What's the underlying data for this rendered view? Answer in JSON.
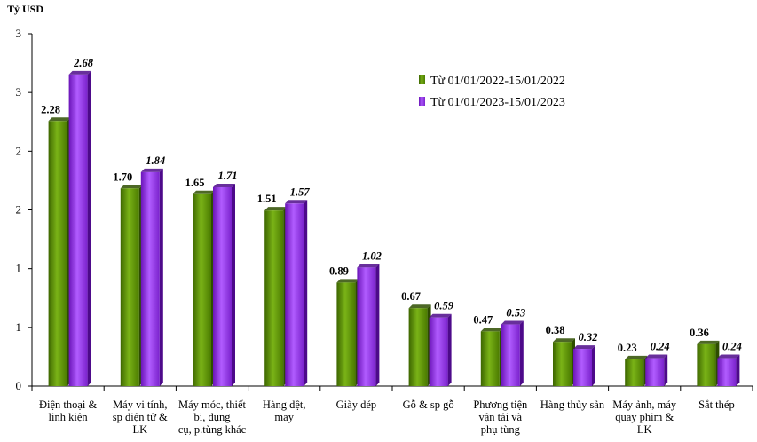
{
  "chart_data": {
    "type": "bar",
    "ylabel": "Tỷ USD",
    "yticks": [
      "0",
      "1",
      "1",
      "2",
      "2",
      "3",
      "3"
    ],
    "ylim": [
      0,
      3
    ],
    "grid": false,
    "legend_position": "top-right",
    "categories": [
      [
        "Điện thoại &",
        "linh kiện"
      ],
      [
        "Máy vi tính,",
        "sp điện tử &",
        "LK"
      ],
      [
        "Máy móc, thiết",
        "bị, dụng",
        "cụ, p.tùng khác"
      ],
      [
        "Hàng dệt,",
        "may"
      ],
      [
        "Giày dép"
      ],
      [
        "Gỗ & sp gỗ"
      ],
      [
        "Phương tiện",
        "vận tải và",
        "phụ tùng"
      ],
      [
        "Hàng thủy sản"
      ],
      [
        "Máy ảnh, máy",
        "quay phim &",
        "LK"
      ],
      [
        "Sắt thép"
      ]
    ],
    "series": [
      {
        "name": "Từ 01/01/2022-15/01/2022",
        "color": "#669900",
        "values": [
          2.28,
          1.7,
          1.65,
          1.51,
          0.89,
          0.67,
          0.47,
          0.38,
          0.23,
          0.36
        ],
        "labels": [
          "2.28",
          "1.70",
          "1.65",
          "1.51",
          "0.89",
          "0.67",
          "0.47",
          "0.38",
          "0.23",
          "0.36"
        ]
      },
      {
        "name": "Từ 01/01/2023-15/01/2023",
        "color": "#9933ee",
        "values": [
          2.68,
          1.84,
          1.71,
          1.57,
          1.02,
          0.59,
          0.53,
          0.32,
          0.24,
          0.24
        ],
        "labels": [
          "2.68",
          "1.84",
          "1.71",
          "1.57",
          "1.02",
          "0.59",
          "0.53",
          "0.32",
          "0.24",
          "0.24"
        ]
      }
    ]
  }
}
